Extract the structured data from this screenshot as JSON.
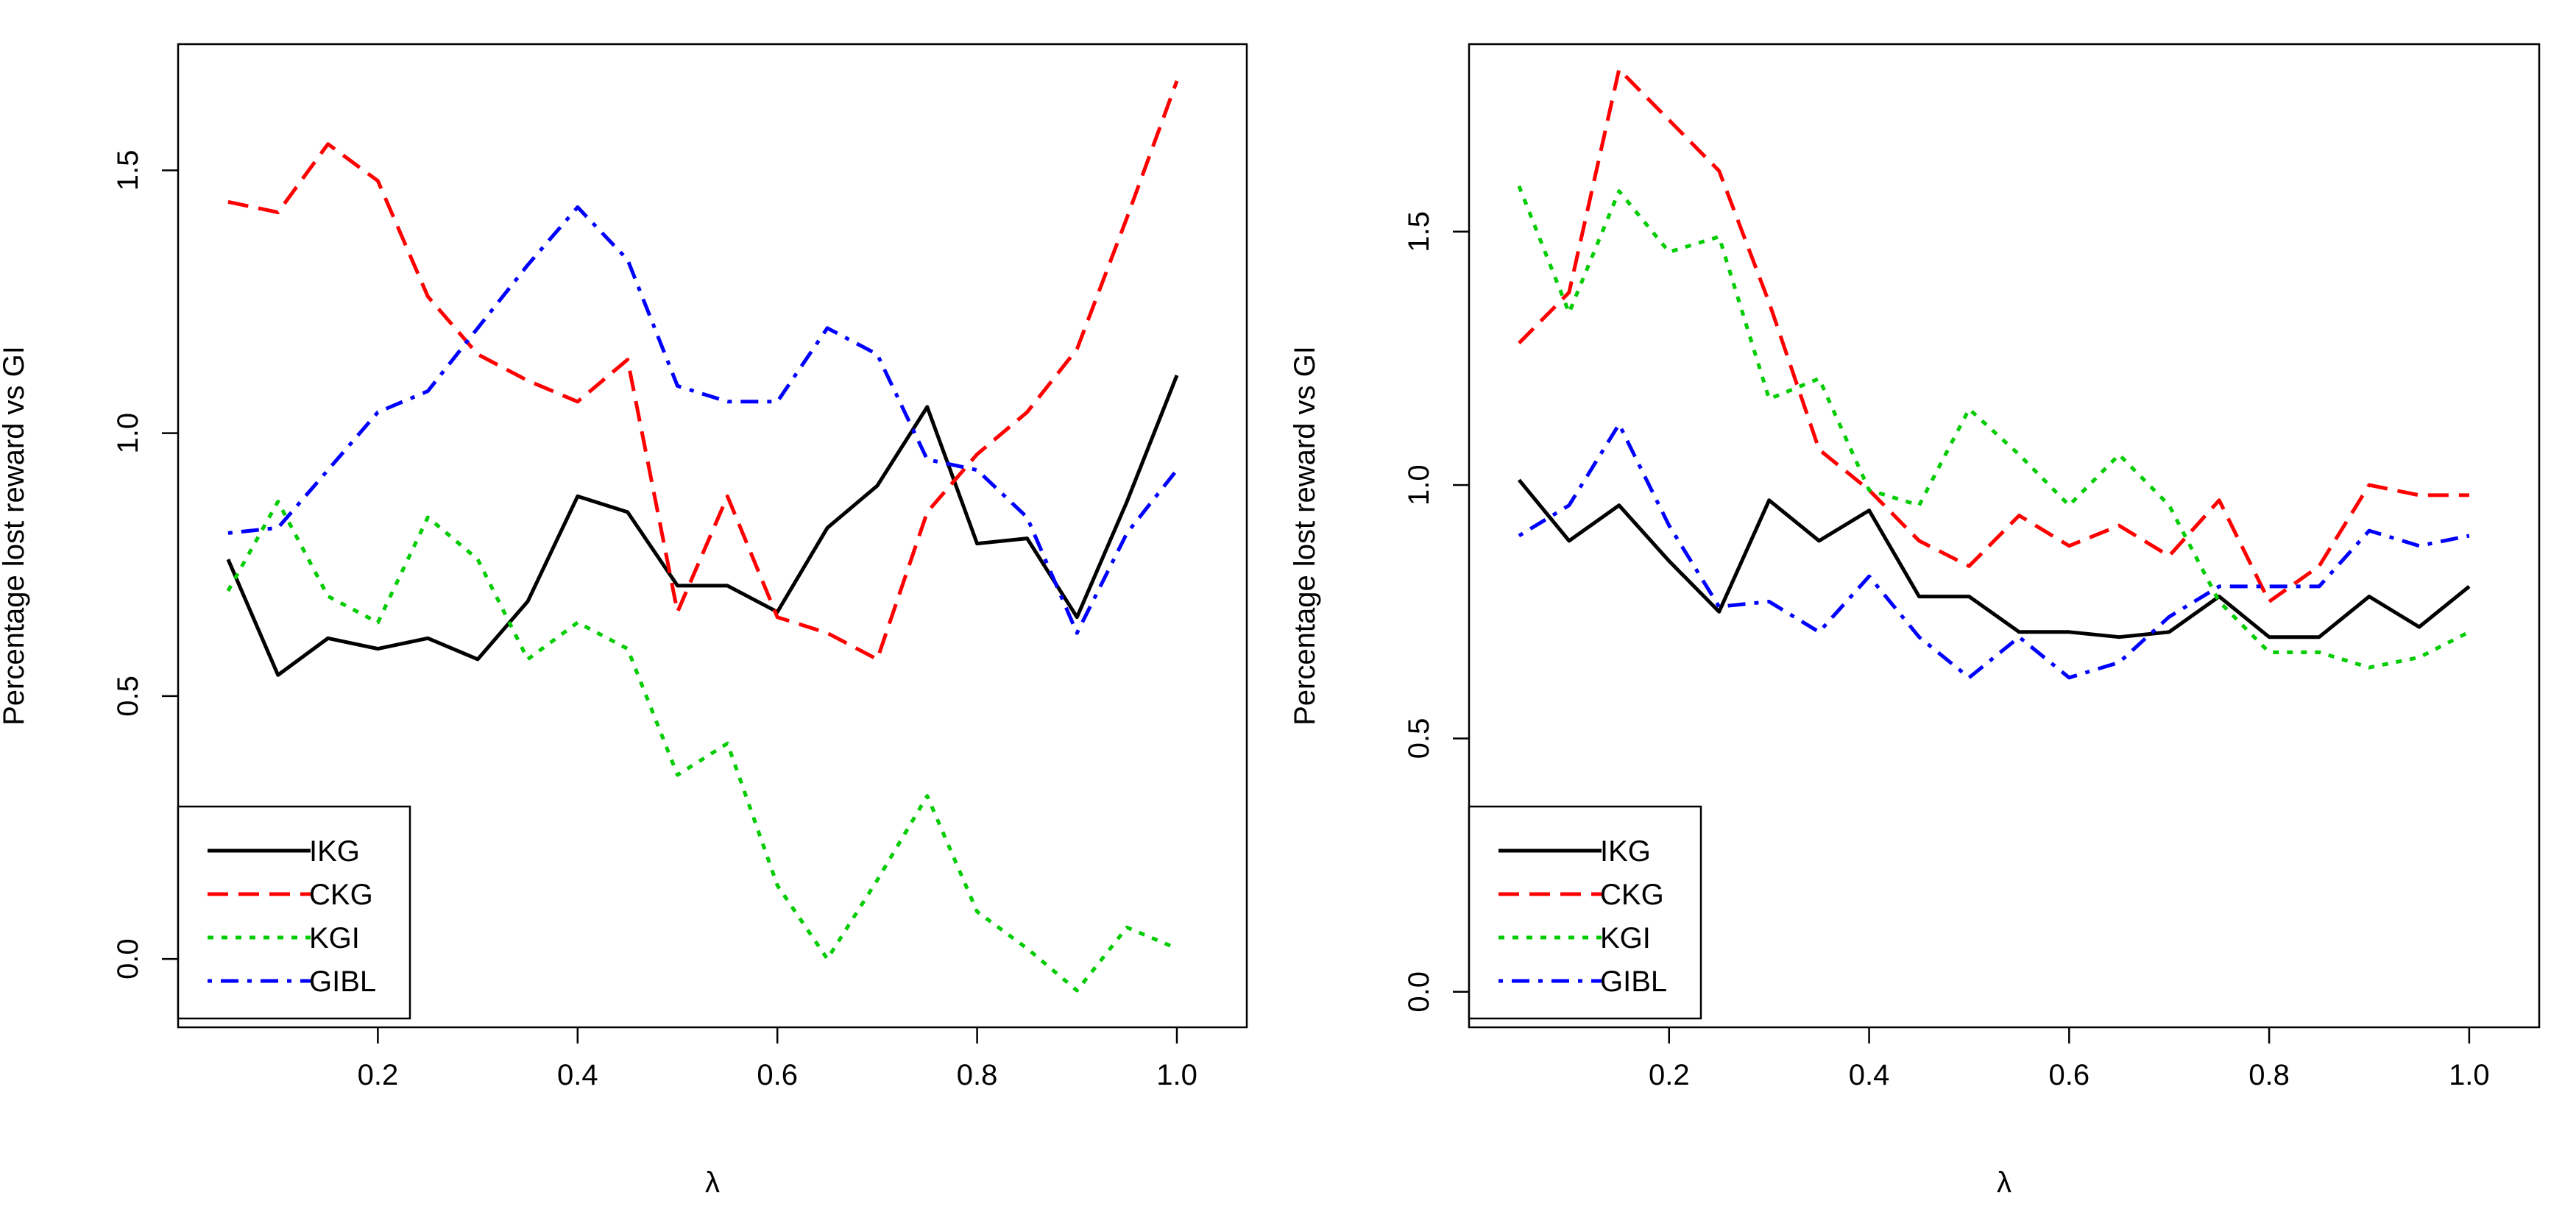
{
  "chart_data": [
    {
      "type": "line",
      "title": "",
      "xlabel": "λ",
      "ylabel": "Percentage lost reward vs GI",
      "xlim": [
        0.0,
        1.07
      ],
      "ylim": [
        -0.13,
        1.74
      ],
      "xticks": [
        0.2,
        0.4,
        0.6,
        0.8,
        1.0
      ],
      "xtick_labels": [
        "0.2",
        "0.4",
        "0.6",
        "0.8",
        "1.0"
      ],
      "yticks": [
        0.0,
        0.5,
        1.0,
        1.5
      ],
      "ytick_labels": [
        "0.0",
        "0.5",
        "1.0",
        "1.5"
      ],
      "grid": false,
      "legend_position": "bottom-left",
      "x": [
        0.05,
        0.1,
        0.15,
        0.2,
        0.25,
        0.3,
        0.35,
        0.4,
        0.45,
        0.5,
        0.55,
        0.6,
        0.65,
        0.7,
        0.75,
        0.8,
        0.85,
        0.9,
        0.95,
        1.0
      ],
      "series": [
        {
          "name": "IKG",
          "color": "#000000",
          "dash": "solid",
          "values": [
            0.76,
            0.54,
            0.61,
            0.59,
            0.61,
            0.57,
            0.68,
            0.88,
            0.85,
            0.71,
            0.71,
            0.66,
            0.82,
            0.9,
            1.05,
            0.79,
            0.8,
            0.65,
            0.87,
            1.11
          ]
        },
        {
          "name": "CKG",
          "color": "#ff0000",
          "dash": "dashed",
          "values": [
            1.44,
            1.42,
            1.55,
            1.48,
            1.26,
            1.15,
            1.1,
            1.06,
            1.14,
            0.66,
            0.88,
            0.65,
            0.62,
            0.57,
            0.85,
            0.96,
            1.04,
            1.16,
            1.41,
            1.67
          ]
        },
        {
          "name": "KGI",
          "color": "#00cc00",
          "dash": "dotted",
          "values": [
            0.7,
            0.87,
            0.69,
            0.64,
            0.84,
            0.76,
            0.57,
            0.64,
            0.59,
            0.35,
            0.41,
            0.14,
            0.0,
            0.15,
            0.31,
            0.09,
            0.02,
            -0.06,
            0.06,
            0.02
          ]
        },
        {
          "name": "GIBL",
          "color": "#0000ff",
          "dash": "dotdash",
          "values": [
            0.81,
            0.82,
            0.93,
            1.04,
            1.08,
            1.2,
            1.32,
            1.43,
            1.33,
            1.09,
            1.06,
            1.06,
            1.2,
            1.15,
            0.95,
            0.93,
            0.84,
            0.62,
            0.81,
            0.93
          ]
        }
      ]
    },
    {
      "type": "line",
      "title": "",
      "xlabel": "λ",
      "ylabel": "Percentage lost reward vs GI",
      "xlim": [
        0.0,
        1.07
      ],
      "ylim": [
        -0.07,
        1.87
      ],
      "xticks": [
        0.2,
        0.4,
        0.6,
        0.8,
        1.0
      ],
      "xtick_labels": [
        "0.2",
        "0.4",
        "0.6",
        "0.8",
        "1.0"
      ],
      "yticks": [
        0.0,
        0.5,
        1.0,
        1.5
      ],
      "ytick_labels": [
        "0.0",
        "0.5",
        "1.0",
        "1.5"
      ],
      "grid": false,
      "legend_position": "bottom-left",
      "x": [
        0.05,
        0.1,
        0.15,
        0.2,
        0.25,
        0.3,
        0.35,
        0.4,
        0.45,
        0.5,
        0.55,
        0.6,
        0.65,
        0.7,
        0.75,
        0.8,
        0.85,
        0.9,
        0.95,
        1.0
      ],
      "series": [
        {
          "name": "IKG",
          "color": "#000000",
          "dash": "solid",
          "values": [
            1.01,
            0.89,
            0.96,
            0.85,
            0.75,
            0.97,
            0.89,
            0.95,
            0.78,
            0.78,
            0.71,
            0.71,
            0.7,
            0.71,
            0.78,
            0.7,
            0.7,
            0.78,
            0.72,
            0.8
          ]
        },
        {
          "name": "CKG",
          "color": "#ff0000",
          "dash": "dashed",
          "values": [
            1.28,
            1.38,
            1.82,
            1.72,
            1.62,
            1.36,
            1.07,
            0.99,
            0.89,
            0.84,
            0.94,
            0.88,
            0.92,
            0.86,
            0.97,
            0.77,
            0.84,
            1.0,
            0.98,
            0.98
          ]
        },
        {
          "name": "KGI",
          "color": "#00cc00",
          "dash": "dotted",
          "values": [
            1.59,
            1.34,
            1.58,
            1.46,
            1.49,
            1.17,
            1.21,
            0.99,
            0.96,
            1.15,
            1.06,
            0.96,
            1.06,
            0.96,
            0.77,
            0.67,
            0.67,
            0.64,
            0.66,
            0.71
          ]
        },
        {
          "name": "GIBL",
          "color": "#0000ff",
          "dash": "dotdash",
          "values": [
            0.9,
            0.96,
            1.12,
            0.92,
            0.76,
            0.77,
            0.71,
            0.82,
            0.7,
            0.62,
            0.7,
            0.62,
            0.65,
            0.74,
            0.8,
            0.8,
            0.8,
            0.91,
            0.88,
            0.9
          ]
        }
      ]
    }
  ]
}
